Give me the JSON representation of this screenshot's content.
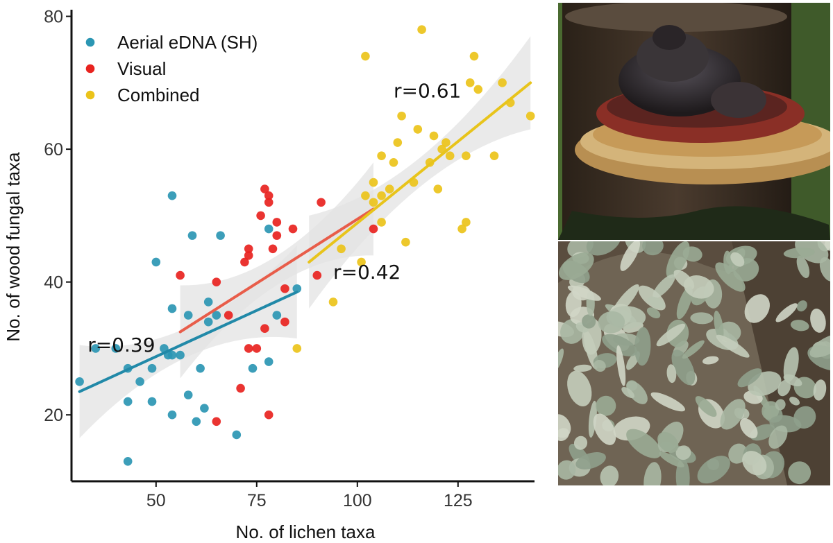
{
  "chart_data": {
    "type": "scatter",
    "xlabel": "No. of lichen taxa",
    "ylabel": "No. of wood fungal taxa",
    "xlim": [
      29,
      144
    ],
    "ylim": [
      10,
      81
    ],
    "x_ticks": [
      50,
      75,
      100,
      125
    ],
    "y_ticks": [
      20,
      40,
      60,
      80
    ],
    "grid": false,
    "legend_position": "top-left",
    "trend_lines": "linear fit with shaded confidence band for each series",
    "colors": {
      "aerial": "#2b96b3",
      "visual": "#e8231f",
      "combined": "#ebc31a",
      "band": "#e3e3e3",
      "axis": "#111111"
    },
    "series": [
      {
        "name": "Aerial eDNA (SH)",
        "color": "#2b96b3",
        "r_label": "r=0.39",
        "fit": {
          "x": [
            31,
            85
          ],
          "y": [
            23.5,
            38.5
          ]
        },
        "points": [
          [
            31,
            25
          ],
          [
            35,
            30
          ],
          [
            40,
            30
          ],
          [
            43,
            27
          ],
          [
            43,
            22
          ],
          [
            43,
            13
          ],
          [
            46,
            25
          ],
          [
            49,
            27
          ],
          [
            49,
            22
          ],
          [
            50,
            43
          ],
          [
            52,
            30
          ],
          [
            53,
            29
          ],
          [
            54,
            36
          ],
          [
            54,
            29
          ],
          [
            54,
            20
          ],
          [
            54,
            53
          ],
          [
            56,
            29
          ],
          [
            58,
            23
          ],
          [
            58,
            35
          ],
          [
            59,
            47
          ],
          [
            60,
            19
          ],
          [
            61,
            27
          ],
          [
            62,
            21
          ],
          [
            63,
            37
          ],
          [
            63,
            34
          ],
          [
            65,
            35
          ],
          [
            66,
            47
          ],
          [
            70,
            17
          ],
          [
            74,
            27
          ],
          [
            78,
            28
          ],
          [
            78,
            48
          ],
          [
            80,
            35
          ],
          [
            85,
            39
          ]
        ]
      },
      {
        "name": "Visual",
        "color": "#e8231f",
        "r_label": "r=0.42",
        "fit": {
          "x": [
            56,
            104
          ],
          "y": [
            32.5,
            51
          ]
        },
        "points": [
          [
            56,
            41
          ],
          [
            65,
            19
          ],
          [
            65,
            40
          ],
          [
            68,
            35
          ],
          [
            71,
            24
          ],
          [
            72,
            43
          ],
          [
            73,
            30
          ],
          [
            73,
            44
          ],
          [
            73,
            45
          ],
          [
            75,
            30
          ],
          [
            76,
            50
          ],
          [
            77,
            54
          ],
          [
            77,
            33
          ],
          [
            78,
            53
          ],
          [
            78,
            52
          ],
          [
            78,
            20
          ],
          [
            79,
            45
          ],
          [
            80,
            49
          ],
          [
            80,
            47
          ],
          [
            82,
            39
          ],
          [
            82,
            34
          ],
          [
            84,
            48
          ],
          [
            90,
            41
          ],
          [
            91,
            52
          ],
          [
            104,
            48
          ]
        ]
      },
      {
        "name": "Combined",
        "color": "#ebc31a",
        "r_label": "r=0.61",
        "fit": {
          "x": [
            88,
            143
          ],
          "y": [
            43,
            70
          ]
        },
        "points": [
          [
            85,
            30
          ],
          [
            94,
            37
          ],
          [
            96,
            45
          ],
          [
            101,
            43
          ],
          [
            102,
            74
          ],
          [
            102,
            53
          ],
          [
            104,
            52
          ],
          [
            104,
            55
          ],
          [
            106,
            59
          ],
          [
            106,
            49
          ],
          [
            106,
            53
          ],
          [
            108,
            54
          ],
          [
            109,
            58
          ],
          [
            110,
            61
          ],
          [
            111,
            65
          ],
          [
            112,
            46
          ],
          [
            114,
            55
          ],
          [
            115,
            63
          ],
          [
            116,
            78
          ],
          [
            118,
            58
          ],
          [
            119,
            62
          ],
          [
            120,
            54
          ],
          [
            121,
            60
          ],
          [
            122,
            61
          ],
          [
            123,
            59
          ],
          [
            126,
            48
          ],
          [
            127,
            49
          ],
          [
            127,
            59
          ],
          [
            128,
            70
          ],
          [
            129,
            74
          ],
          [
            130,
            69
          ],
          [
            134,
            59
          ],
          [
            136,
            70
          ],
          [
            138,
            67
          ],
          [
            143,
            65
          ]
        ]
      }
    ]
  }
}
